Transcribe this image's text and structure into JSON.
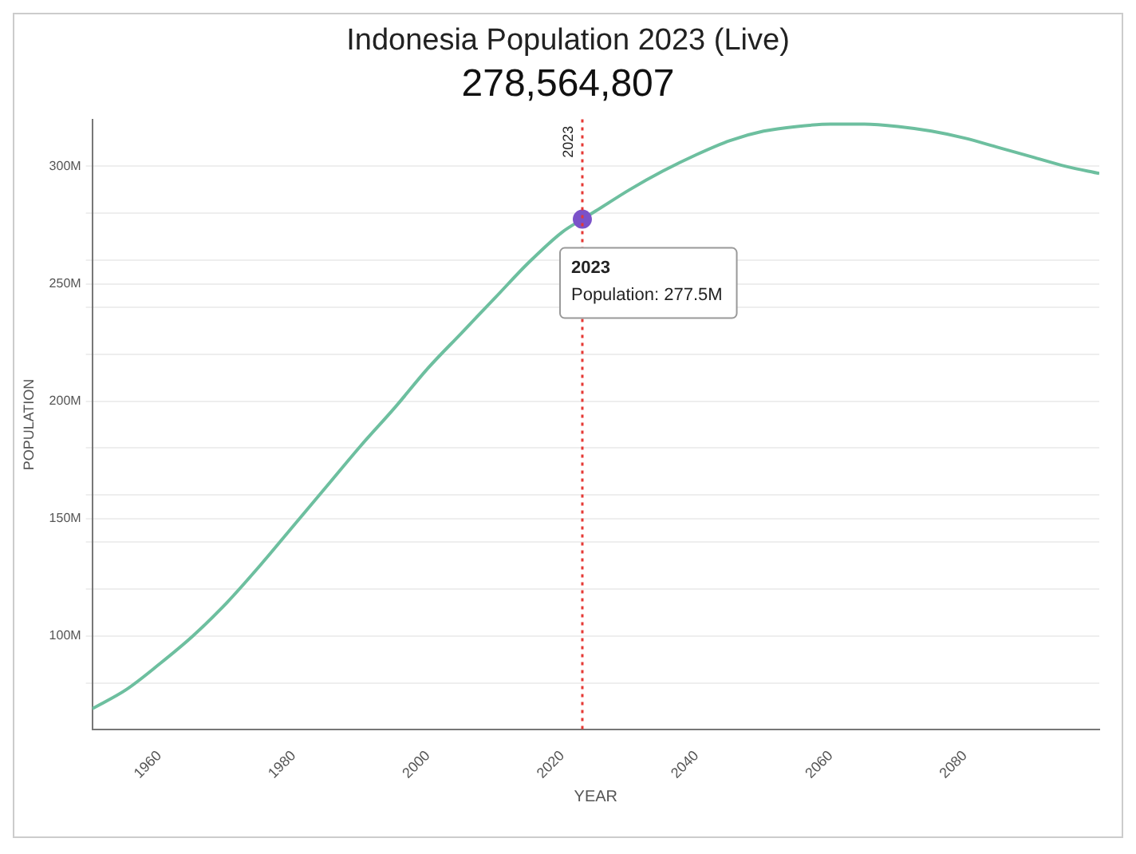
{
  "chart_data": {
    "type": "line",
    "title": "Indonesia Population 2023 (Live)",
    "subtitle": "278,564,807",
    "xlabel": "YEAR",
    "ylabel": "POPULATION",
    "x": [
      1950,
      1955,
      1960,
      1965,
      1970,
      1975,
      1980,
      1985,
      1990,
      1995,
      2000,
      2005,
      2010,
      2015,
      2020,
      2023,
      2025,
      2030,
      2035,
      2040,
      2045,
      2050,
      2055,
      2060,
      2065,
      2070,
      2075,
      2080,
      2085,
      2090,
      2095,
      2100
    ],
    "series": [
      {
        "color": "#6dbf9f",
        "marker": "none",
        "values": [
          69,
          77,
          88,
          100,
          114,
          130,
          147,
          164,
          181,
          197,
          214,
          229,
          244,
          259,
          272,
          277.5,
          281,
          290,
          298,
          305,
          311,
          315,
          317,
          318,
          318,
          317,
          315,
          312,
          308,
          304,
          300,
          297
        ]
      },
      {
        "type": "scatter",
        "color": "#7b52c9",
        "marker": "circle",
        "x": [
          2023
        ],
        "values": [
          277.5
        ]
      }
    ],
    "xlim": [
      1950,
      2100
    ],
    "xticks": [
      1960,
      1980,
      2000,
      2020,
      2040,
      2060,
      2080
    ],
    "ylim": [
      60,
      320
    ],
    "yticks": [
      {
        "value": 80,
        "label": null
      },
      {
        "value": 100,
        "label": "100M"
      },
      {
        "value": 120,
        "label": null
      },
      {
        "value": 140,
        "label": null
      },
      {
        "value": 150,
        "label": "150M"
      },
      {
        "value": 160,
        "label": null
      },
      {
        "value": 180,
        "label": null
      },
      {
        "value": 200,
        "label": "200M"
      },
      {
        "value": 220,
        "label": null
      },
      {
        "value": 240,
        "label": null
      },
      {
        "value": 250,
        "label": "250M"
      },
      {
        "value": 260,
        "label": null
      },
      {
        "value": 280,
        "label": null
      },
      {
        "value": 300,
        "label": "300M"
      }
    ],
    "ref_lines": [
      {
        "axis": "x",
        "value": 2023,
        "label": "2023",
        "color": "#e53935",
        "line_style": "dotted"
      }
    ],
    "annotations": [
      {
        "text": "2023",
        "x": 2023,
        "y": 277.5
      },
      "Population: 277.5M"
    ],
    "grid": "y",
    "legend": false,
    "line_style": "solid"
  }
}
